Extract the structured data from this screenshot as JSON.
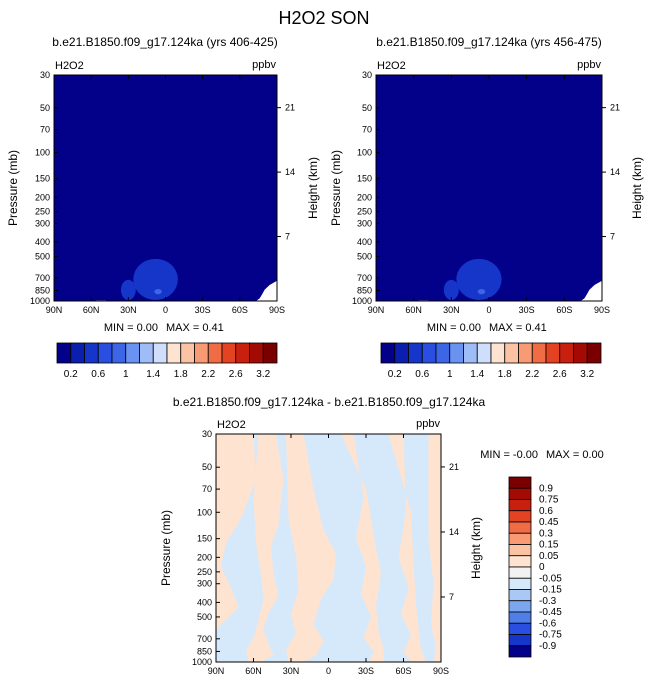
{
  "page_title": "H2O2 SON",
  "chart_data": [
    {
      "type": "contour",
      "title": "b.e21.B1850.f09_g17.124ka (yrs 406-425)",
      "variable": "H2O2",
      "units": "ppbv",
      "ylabel": "Pressure (mb)",
      "ylabel_right": "Height (km)",
      "x_ticks": [
        "90N",
        "60N",
        "30N",
        "0",
        "30S",
        "60S",
        "90S"
      ],
      "x_values": [
        90,
        60,
        30,
        0,
        -30,
        -60,
        -90
      ],
      "y_ticks": [
        "30",
        "50",
        "70",
        "100",
        "150",
        "200",
        "250",
        "300",
        "400",
        "500",
        "700",
        "850",
        "1000"
      ],
      "y_values": [
        30,
        50,
        70,
        100,
        150,
        200,
        250,
        300,
        400,
        500,
        700,
        850,
        1000
      ],
      "y_scale": "log",
      "right_ticks": [
        "21",
        "14",
        "7"
      ],
      "right_values": [
        21,
        14,
        7
      ],
      "min_text": "MIN = 0.00",
      "max_text": "MAX = 0.41",
      "background_color": "#03008a",
      "features": [
        {
          "lat": 8,
          "plev": 870,
          "dlat": 18,
          "color": "#1636c9"
        },
        {
          "lat": 6,
          "plev": 860,
          "dlat": 3,
          "color": "#3c66e6"
        },
        {
          "lat": 30,
          "plev": 870,
          "dlat": 6,
          "color": "#1636c9"
        }
      ]
    },
    {
      "type": "contour",
      "title": "b.e21.B1850.f09_g17.124ka (yrs 456-475)",
      "variable": "H2O2",
      "units": "ppbv",
      "ylabel": "Pressure (mb)",
      "ylabel_right": "Height (km)",
      "x_ticks": [
        "90N",
        "60N",
        "30N",
        "0",
        "30S",
        "60S",
        "90S"
      ],
      "x_values": [
        90,
        60,
        30,
        0,
        -30,
        -60,
        -90
      ],
      "y_ticks": [
        "30",
        "50",
        "70",
        "100",
        "150",
        "200",
        "250",
        "300",
        "400",
        "500",
        "700",
        "850",
        "1000"
      ],
      "y_values": [
        30,
        50,
        70,
        100,
        150,
        200,
        250,
        300,
        400,
        500,
        700,
        850,
        1000
      ],
      "y_scale": "log",
      "right_ticks": [
        "21",
        "14",
        "7"
      ],
      "right_values": [
        21,
        14,
        7
      ],
      "min_text": "MIN = 0.00",
      "max_text": "MAX = 0.41",
      "background_color": "#03008a",
      "features": [
        {
          "lat": 8,
          "plev": 870,
          "dlat": 18,
          "color": "#1636c9"
        },
        {
          "lat": 6,
          "plev": 860,
          "dlat": 3,
          "color": "#3c66e6"
        },
        {
          "lat": 30,
          "plev": 870,
          "dlat": 6,
          "color": "#1636c9"
        }
      ]
    },
    {
      "type": "contour",
      "title": "b.e21.B1850.f09_g17.124ka - b.e21.B1850.f09_g17.124ka",
      "variable": "H2O2",
      "units": "ppbv",
      "ylabel": "Pressure (mb)",
      "ylabel_right": "Height (km)",
      "x_ticks": [
        "90N",
        "60N",
        "30N",
        "0",
        "30S",
        "60S",
        "90S"
      ],
      "x_values": [
        90,
        60,
        30,
        0,
        -30,
        -60,
        -90
      ],
      "y_ticks": [
        "30",
        "50",
        "70",
        "100",
        "150",
        "200",
        "250",
        "300",
        "400",
        "500",
        "700",
        "850",
        "1000"
      ],
      "y_values": [
        30,
        50,
        70,
        100,
        150,
        200,
        250,
        300,
        400,
        500,
        700,
        850,
        1000
      ],
      "y_scale": "log",
      "right_ticks": [
        "21",
        "14",
        "7"
      ],
      "right_values": [
        21,
        14,
        7
      ],
      "min_text": "MIN = -0.00",
      "max_text": "MAX = 0.00",
      "positive_color": "#fde3d0",
      "negative_color": "#d6e9fb"
    }
  ],
  "colorbar_main": {
    "labels": [
      "0.2",
      "0.6",
      "1",
      "1.4",
      "1.8",
      "2.2",
      "2.6",
      "3.2"
    ],
    "colors": [
      "#03008a",
      "#0a1fae",
      "#1636c9",
      "#2a4fe0",
      "#3c66e6",
      "#6a92f0",
      "#9ebcf6",
      "#cfdefa",
      "#fde3d0",
      "#fcc2a4",
      "#f89a74",
      "#f06c45",
      "#e34322",
      "#c91f0e",
      "#a30a04",
      "#7a0000"
    ]
  },
  "colorbar_diff": {
    "labels": [
      "0.9",
      "0.75",
      "0.6",
      "0.45",
      "0.3",
      "0.15",
      "0.05",
      "0",
      "-0.05",
      "-0.15",
      "-0.3",
      "-0.45",
      "-0.6",
      "-0.75",
      "-0.9"
    ],
    "colors": [
      "#7a0000",
      "#a30a04",
      "#c91f0e",
      "#e34322",
      "#f06c45",
      "#f89a74",
      "#fcc2a4",
      "#fde3d0",
      "#f2f2f2",
      "#d6e9fb",
      "#a9c8f6",
      "#7da6f1",
      "#4f7ee8",
      "#2a4fe0",
      "#1636c9",
      "#03008a"
    ]
  }
}
